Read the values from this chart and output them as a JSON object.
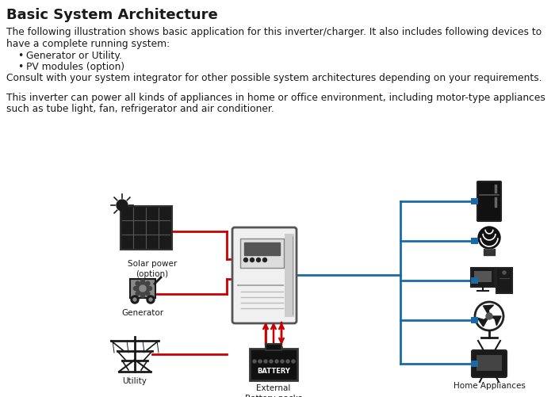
{
  "title": "Basic System Architecture",
  "background_color": "#ffffff",
  "text_color": "#1a1a1a",
  "paragraph1a": "The following illustration shows basic application for this inverter/charger. It also includes following devices to",
  "paragraph1b": "have a complete running system:",
  "bullet1": "Generator or Utility.",
  "bullet2": "PV modules (option)",
  "paragraph2": "Consult with your system integrator for other possible system architectures depending on your requirements.",
  "paragraph3a": "This inverter can power all kinds of appliances in home or office environment, including motor-type appliances",
  "paragraph3b": "such as tube light, fan, refrigerator and air conditioner.",
  "label_solar": "Solar power\n(option)",
  "label_generator": "Generator",
  "label_utility": "Utility",
  "label_battery": "External\nBattery packs",
  "label_home": "Home Appliances",
  "red_color": "#cc0000",
  "blue_color": "#1a6aa8",
  "dark_color": "#1a1a1a",
  "font_size_title": 13,
  "font_size_body": 8.8,
  "font_size_label": 7.5
}
